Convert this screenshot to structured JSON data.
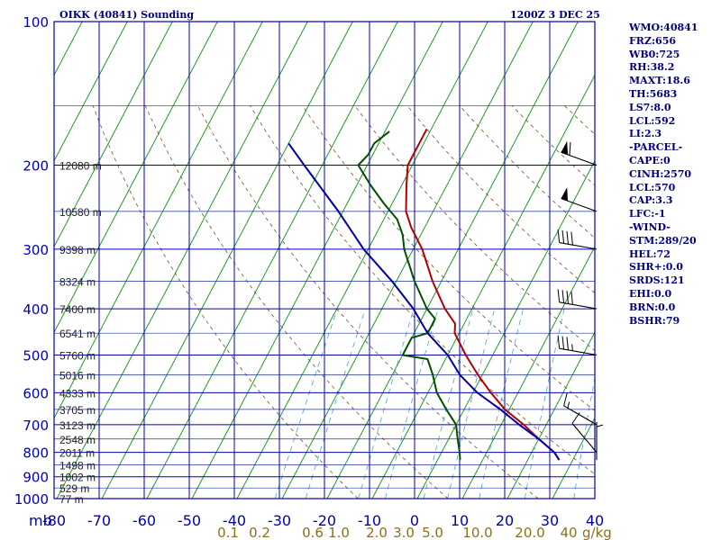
{
  "title_left": "OIKK (40841) Sounding",
  "title_right": "1200Z  3 DEC 25",
  "indices": [
    "WMO:40841",
    "FRZ:656",
    "WB0:725",
    "RH:38.2",
    "MAXT:18.6",
    "TH:5683",
    "LS7:8.0",
    "LCL:592",
    "LI:2.3",
    "-PARCEL-",
    "CAPE:0",
    "CINH:2570",
    "LCL:570",
    "CAP:3.3",
    "LFC:-1",
    "-WIND-",
    "STM:289/20",
    "HEL:72",
    "SHR+:0.0",
    "SRDS:121",
    "EHI:0.0",
    "BRN:0.0",
    "BSHR:79"
  ],
  "chart_data": {
    "type": "line",
    "title": "OIKK (40841) Sounding",
    "subtitle": "1200Z  3 DEC 25",
    "y_axis": {
      "unit": "mb",
      "scale": "log-pressure",
      "range": [
        1000,
        100
      ],
      "pressure_ticks": [
        100,
        200,
        300,
        400,
        500,
        600,
        700,
        800,
        900,
        1000
      ],
      "minor_levels": [
        150,
        250,
        350,
        450,
        550,
        650,
        750,
        850,
        950
      ],
      "height_labels": [
        {
          "p": 200,
          "label": "12080 m"
        },
        {
          "p": 250,
          "label": "10580 m"
        },
        {
          "p": 300,
          "label": "9398 m"
        },
        {
          "p": 350,
          "label": "8324 m"
        },
        {
          "p": 400,
          "label": "7400 m"
        },
        {
          "p": 450,
          "label": "6541 m"
        },
        {
          "p": 500,
          "label": "5760 m"
        },
        {
          "p": 550,
          "label": "5016 m"
        },
        {
          "p": 600,
          "label": "4333 m"
        },
        {
          "p": 650,
          "label": "3705 m"
        },
        {
          "p": 700,
          "label": "3123 m"
        },
        {
          "p": 750,
          "label": "2548 m"
        },
        {
          "p": 800,
          "label": "2011 m"
        },
        {
          "p": 850,
          "label": "1498 m"
        },
        {
          "p": 900,
          "label": "1002 m"
        },
        {
          "p": 950,
          "label": "529 m"
        },
        {
          "p": 1000,
          "label": "77 m"
        }
      ]
    },
    "x_axis": {
      "unit": "°C",
      "range": [
        -80,
        40
      ],
      "temperature_ticks": [
        -80,
        -70,
        -60,
        -50,
        -40,
        -30,
        -20,
        -10,
        0,
        10,
        20,
        30,
        40
      ],
      "temperature_labels": [
        "-80",
        "-70",
        "-60",
        "-50",
        "-40",
        "-30",
        "-20",
        "-10",
        "0",
        "10",
        "20",
        "30",
        "40"
      ],
      "axis_unit_label": "mb",
      "mixing_ratio_labels": [
        "0.1",
        "0.2",
        "0.6",
        "1.0",
        "2.0",
        "3.0",
        "5.0",
        "10.0",
        "20.0",
        "40"
      ],
      "mixing_ratio_unit": "g/kg"
    },
    "series": [
      {
        "role": "temperature",
        "color": "#b00000",
        "points": [
          [
            830,
            17
          ],
          [
            800,
            15
          ],
          [
            750,
            10
          ],
          [
            700,
            5
          ],
          [
            650,
            -1
          ],
          [
            600,
            -6
          ],
          [
            550,
            -11
          ],
          [
            500,
            -16
          ],
          [
            450,
            -21
          ],
          [
            430,
            -22
          ],
          [
            400,
            -26
          ],
          [
            350,
            -32
          ],
          [
            300,
            -38
          ],
          [
            270,
            -43
          ],
          [
            250,
            -46
          ],
          [
            220,
            -49
          ],
          [
            200,
            -51
          ],
          [
            175,
            -51
          ],
          [
            168,
            -51
          ]
        ]
      },
      {
        "role": "dewpoint",
        "color": "#005000",
        "points": [
          [
            830,
            -5
          ],
          [
            800,
            -6
          ],
          [
            750,
            -8
          ],
          [
            700,
            -10
          ],
          [
            650,
            -14
          ],
          [
            600,
            -18
          ],
          [
            550,
            -21
          ],
          [
            510,
            -24
          ],
          [
            500,
            -30
          ],
          [
            460,
            -30
          ],
          [
            450,
            -27
          ],
          [
            420,
            -27
          ],
          [
            400,
            -30
          ],
          [
            350,
            -36
          ],
          [
            300,
            -42
          ],
          [
            280,
            -44
          ],
          [
            260,
            -47
          ],
          [
            240,
            -52
          ],
          [
            220,
            -57
          ],
          [
            200,
            -62
          ],
          [
            190,
            -61
          ],
          [
            180,
            -61
          ],
          [
            170,
            -59
          ]
        ]
      },
      {
        "role": "parcel",
        "color": "#0000a0",
        "points": [
          [
            830,
            17
          ],
          [
            800,
            15
          ],
          [
            750,
            10
          ],
          [
            700,
            4
          ],
          [
            650,
            -2
          ],
          [
            600,
            -9
          ],
          [
            550,
            -15
          ],
          [
            500,
            -20
          ],
          [
            450,
            -27
          ],
          [
            400,
            -33
          ],
          [
            350,
            -41
          ],
          [
            300,
            -51
          ],
          [
            250,
            -61
          ],
          [
            200,
            -74
          ],
          [
            180,
            -80
          ]
        ]
      }
    ],
    "wind_barbs": [
      {
        "p": 200,
        "dir": 290,
        "speed": 60
      },
      {
        "p": 250,
        "dir": 290,
        "speed": 50
      },
      {
        "p": 300,
        "dir": 280,
        "speed": 40
      },
      {
        "p": 400,
        "dir": 280,
        "speed": 40
      },
      {
        "p": 500,
        "dir": 280,
        "speed": 35
      },
      {
        "p": 700,
        "dir": 300,
        "speed": 15
      },
      {
        "p": 800,
        "dir": 320,
        "speed": 10
      },
      {
        "p": 830,
        "dir": 360,
        "speed": 5
      }
    ],
    "grid": true,
    "legend": "none"
  }
}
